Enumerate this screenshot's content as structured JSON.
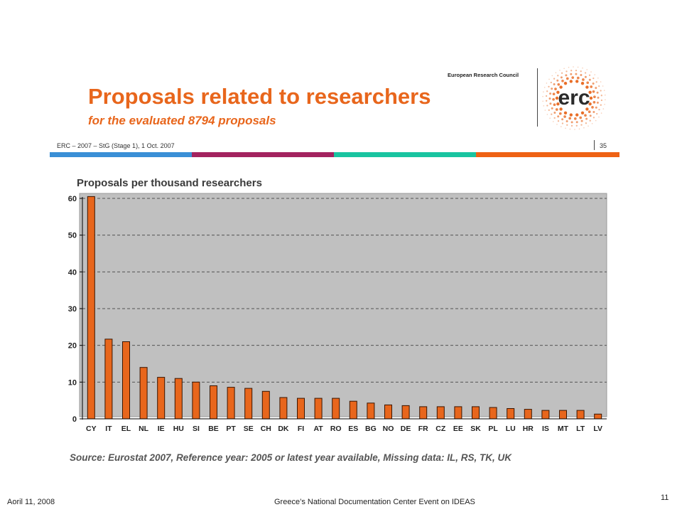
{
  "slide": {
    "title": "Proposals related to researchers",
    "subtitle": "for the evaluated 8794 proposals",
    "org_name": "European Research Council",
    "logo_text": "erc",
    "header_line": "ERC – 2007 – StG (Stage 1), 1 Oct. 2007",
    "page_ref": "35",
    "colors": {
      "accent": "#e8661c",
      "band1": "#3a8fd6",
      "band2": "#a3235f",
      "band3": "#19c4a0",
      "band4": "#ee6214"
    }
  },
  "chart_data": {
    "type": "bar",
    "title": "Proposals per thousand researchers",
    "categories": [
      "CY",
      "IT",
      "EL",
      "NL",
      "IE",
      "HU",
      "SI",
      "BE",
      "PT",
      "SE",
      "CH",
      "DK",
      "FI",
      "AT",
      "RO",
      "ES",
      "BG",
      "NO",
      "DE",
      "FR",
      "CZ",
      "EE",
      "SK",
      "PL",
      "LU",
      "HR",
      "IS",
      "MT",
      "LT",
      "LV"
    ],
    "values": [
      60.5,
      21.7,
      21.0,
      14.0,
      11.3,
      11.0,
      10.0,
      9.0,
      8.6,
      8.3,
      7.5,
      5.8,
      5.6,
      5.6,
      5.6,
      4.8,
      4.3,
      3.8,
      3.6,
      3.3,
      3.3,
      3.3,
      3.3,
      3.1,
      2.8,
      2.6,
      2.3,
      2.3,
      2.3,
      1.3
    ],
    "ylim": [
      0,
      60
    ],
    "yticks": [
      0,
      10,
      20,
      30,
      40,
      50,
      60
    ],
    "grid": true,
    "bar_color": "#e8661c",
    "plot_bg": "#c0c0c0"
  },
  "source_note": "Source: Eurostat 2007, Reference year: 2005 or latest year available, Missing data: IL, RS, TK, UK",
  "footer": {
    "date": "Aoril 11, 2008",
    "event": "Greece’s National Documentation Center Event on IDEAS",
    "page": "11"
  }
}
